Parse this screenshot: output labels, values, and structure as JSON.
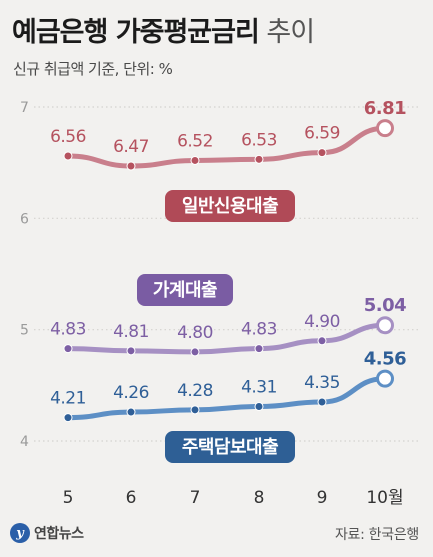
{
  "header": {
    "title": "예금은행 가중평균금리",
    "title_suffix": "추이",
    "subtitle": "신규 취급액 기준, 단위: %"
  },
  "footer": {
    "logo_text": "연합뉴스",
    "source": "자료: 한국은행"
  },
  "chart_data": {
    "type": "line",
    "categories": [
      "5",
      "6",
      "7",
      "8",
      "9",
      "10월"
    ],
    "ylim": [
      4,
      7
    ],
    "yticks": [
      "7",
      "6",
      "5",
      "4"
    ],
    "grid": true,
    "series": [
      {
        "name": "일반신용대출",
        "values": [
          6.56,
          6.47,
          6.52,
          6.53,
          6.59,
          6.81
        ],
        "labels": [
          "6.56",
          "6.47",
          "6.52",
          "6.53",
          "6.59",
          "6.81"
        ],
        "color": "#c97f8c",
        "label_color": "#b5525f",
        "badge_color": "#b04a57"
      },
      {
        "name": "가계대출",
        "values": [
          4.83,
          4.81,
          4.8,
          4.83,
          4.9,
          5.04
        ],
        "labels": [
          "4.83",
          "4.81",
          "4.80",
          "4.83",
          "4.90",
          "5.04"
        ],
        "color": "#a690c3",
        "label_color": "#7d5fa4",
        "badge_color": "#7a5ca3"
      },
      {
        "name": "주택담보대출",
        "values": [
          4.21,
          4.26,
          4.28,
          4.31,
          4.35,
          4.56
        ],
        "labels": [
          "4.21",
          "4.26",
          "4.28",
          "4.31",
          "4.35",
          "4.56"
        ],
        "color": "#5d8fc5",
        "label_color": "#2f5f97",
        "badge_color": "#2e5f95"
      }
    ]
  }
}
